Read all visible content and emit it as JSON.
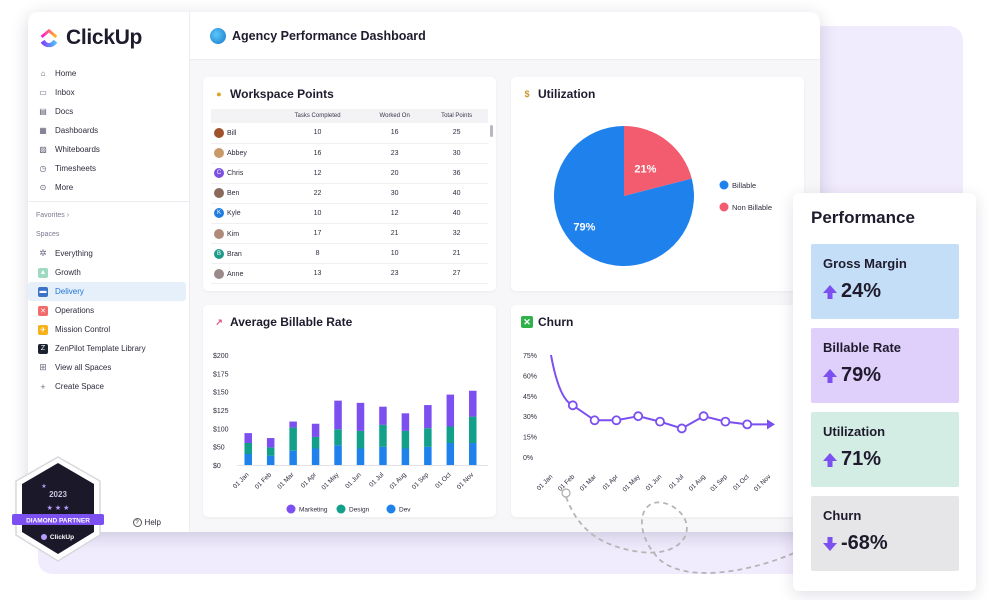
{
  "app": {
    "logo_text": "ClickUp",
    "dashboard_title": "Agency Performance Dashboard"
  },
  "sidebar": {
    "items": [
      {
        "label": "Home",
        "icon": "home-icon"
      },
      {
        "label": "Inbox",
        "icon": "inbox-icon"
      },
      {
        "label": "Docs",
        "icon": "docs-icon"
      },
      {
        "label": "Dashboards",
        "icon": "dashboards-icon"
      },
      {
        "label": "Whiteboards",
        "icon": "whiteboards-icon"
      },
      {
        "label": "Timesheets",
        "icon": "timesheets-icon"
      },
      {
        "label": "More",
        "icon": "more-icon"
      }
    ],
    "favorites_label": "Favorites ›",
    "spaces_label": "Spaces",
    "spaces": [
      {
        "label": "Everything",
        "icon": "everything-icon",
        "color": "#6b6880"
      },
      {
        "label": "Growth",
        "icon": "growth-icon",
        "color": "#9fd9c2"
      },
      {
        "label": "Delivery",
        "icon": "delivery-icon",
        "color": "#3d74c9",
        "active": true
      },
      {
        "label": "Operations",
        "icon": "operations-icon",
        "color": "#f26a6a"
      },
      {
        "label": "Mission Control",
        "icon": "mission-control-icon",
        "color": "#f5b21b"
      },
      {
        "label": "ZenPilot Template Library",
        "icon": "zenpilot-icon",
        "color": "#1c2230"
      },
      {
        "label": "View all Spaces",
        "icon": "view-all-spaces-icon",
        "color": "#6b6880"
      },
      {
        "label": "Create Space",
        "icon": "plus-icon",
        "color": "#6b6880"
      }
    ],
    "help_label": "Help"
  },
  "workspace_points": {
    "title": "Workspace Points",
    "columns": [
      "",
      "Tasks Completed",
      "Worked On",
      "Total Points"
    ],
    "rows": [
      {
        "name": "Bill",
        "avatar": "#a0522d",
        "initial": "",
        "tasks": "10",
        "worked": "16",
        "total": "25"
      },
      {
        "name": "Abbey",
        "avatar": "#c89a6a",
        "initial": "",
        "tasks": "16",
        "worked": "23",
        "total": "30"
      },
      {
        "name": "Chris",
        "avatar": "#7b4fe0",
        "initial": "C",
        "tasks": "12",
        "worked": "20",
        "total": "36"
      },
      {
        "name": "Ben",
        "avatar": "#8a6a5a",
        "initial": "",
        "tasks": "22",
        "worked": "30",
        "total": "40"
      },
      {
        "name": "Kyle",
        "avatar": "#1f7ee0",
        "initial": "K",
        "tasks": "10",
        "worked": "12",
        "total": "40"
      },
      {
        "name": "Kim",
        "avatar": "#b08a7a",
        "initial": "",
        "tasks": "17",
        "worked": "21",
        "total": "32"
      },
      {
        "name": "Bran",
        "avatar": "#1f9a8a",
        "initial": "B",
        "tasks": "8",
        "worked": "10",
        "total": "21"
      },
      {
        "name": "Anne",
        "avatar": "#9a8a8a",
        "initial": "",
        "tasks": "13",
        "worked": "23",
        "total": "27"
      }
    ]
  },
  "utilization": {
    "title": "Utilization",
    "legend": [
      {
        "label": "Billable",
        "color": "#1f82ec"
      },
      {
        "label": "Non Billable",
        "color": "#f25c6e"
      }
    ]
  },
  "billable_rate": {
    "title": "Average Billable Rate",
    "legend": [
      {
        "label": "Marketing",
        "color": "#7b4ff0"
      },
      {
        "label": "Design",
        "color": "#12a08a"
      },
      {
        "label": "Dev",
        "color": "#1f82ec"
      }
    ]
  },
  "churn": {
    "title": "Churn"
  },
  "chart_data": [
    {
      "type": "pie",
      "slices": [
        {
          "label": "Billable",
          "value": 79,
          "display": "79%",
          "color": "#1f82ec"
        },
        {
          "label": "Non Billable",
          "value": 21,
          "display": "21%",
          "color": "#f25c6e"
        }
      ]
    },
    {
      "type": "bar",
      "stacked": true,
      "categories": [
        "01 Jan",
        "01 Feb",
        "01 Mar",
        "01 Apr",
        "01 May",
        "01 Jun",
        "01 Jul",
        "01 Aug",
        "01 Sep",
        "01 Oct",
        "01 Nov"
      ],
      "series": [
        {
          "name": "Dev",
          "color": "#1f82ec",
          "values": [
            20,
            17,
            26,
            30,
            36,
            30,
            33,
            30,
            33,
            40,
            40
          ]
        },
        {
          "name": "Design",
          "color": "#12a08a",
          "values": [
            20,
            15,
            42,
            21,
            29,
            32,
            40,
            32,
            34,
            30,
            48
          ]
        },
        {
          "name": "Marketing",
          "color": "#7b4ff0",
          "values": [
            18,
            17,
            11,
            24,
            52,
            51,
            33,
            32,
            42,
            58,
            47
          ]
        }
      ],
      "ylim": [
        0,
        200
      ],
      "yticks": [
        "$0",
        "$50",
        "$100",
        "$125",
        "$150",
        "$175",
        "$200"
      ]
    },
    {
      "type": "line",
      "categories": [
        "01 Jan",
        "01 Feb",
        "01 Mar",
        "01 Apr",
        "01 May",
        "01 Jun",
        "01 Jul",
        "01 Aug",
        "01 Sep",
        "01 Oct",
        "01 Nov"
      ],
      "series": [
        {
          "color": "#7b4ff0",
          "values": [
            75,
            38,
            27,
            27,
            30,
            26,
            21,
            30,
            26,
            24,
            24
          ]
        }
      ],
      "ylim": [
        0,
        75
      ],
      "yticks": [
        "0%",
        "15%",
        "30%",
        "45%",
        "60%",
        "75%"
      ]
    }
  ],
  "performance": {
    "title": "Performance",
    "metrics": [
      {
        "label": "Gross Margin",
        "value": "24%",
        "direction": "up",
        "bg": "#c4def8"
      },
      {
        "label": "Billable Rate",
        "value": "79%",
        "direction": "up",
        "bg": "#ded0fa"
      },
      {
        "label": "Utilization",
        "value": "71%",
        "direction": "up",
        "bg": "#d3ece4"
      },
      {
        "label": "Churn",
        "value": "-68%",
        "direction": "down",
        "bg": "#e6e6e8"
      }
    ]
  },
  "badge": {
    "year": "2023",
    "line1": "DIAMOND PARTNER",
    "brand": "ClickUp"
  }
}
